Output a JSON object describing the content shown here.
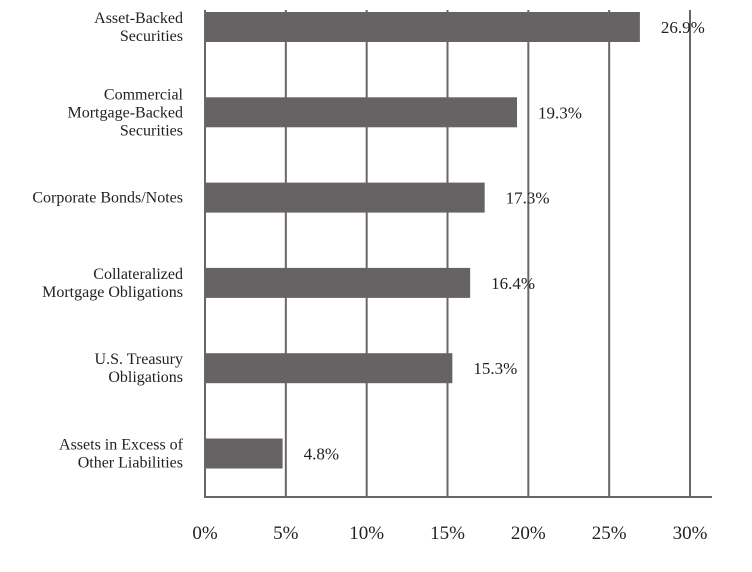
{
  "chart_data": {
    "type": "bar",
    "orientation": "horizontal",
    "categories": [
      [
        "Asset-Backed",
        "Securities"
      ],
      [
        "Commercial",
        "Mortgage-Backed",
        "Securities"
      ],
      [
        "Corporate Bonds/Notes"
      ],
      [
        "Collateralized",
        "Mortgage Obligations"
      ],
      [
        "U.S. Treasury",
        "Obligations"
      ],
      [
        "Assets in Excess of",
        "Other Liabilities"
      ]
    ],
    "values": [
      26.9,
      19.3,
      17.3,
      16.4,
      15.3,
      4.8
    ],
    "value_labels": [
      "26.9%",
      "19.3%",
      "17.3%",
      "16.4%",
      "15.3%",
      "4.8%"
    ],
    "xlim": [
      0,
      30
    ],
    "x_ticks": [
      0,
      5,
      10,
      15,
      20,
      25,
      30
    ],
    "x_tick_labels": [
      "0%",
      "5%",
      "10%",
      "15%",
      "20%",
      "25%",
      "30%"
    ],
    "grid": true,
    "bar_color": "#676263",
    "grid_color": "#6b6566",
    "text_color": "#231f20"
  }
}
